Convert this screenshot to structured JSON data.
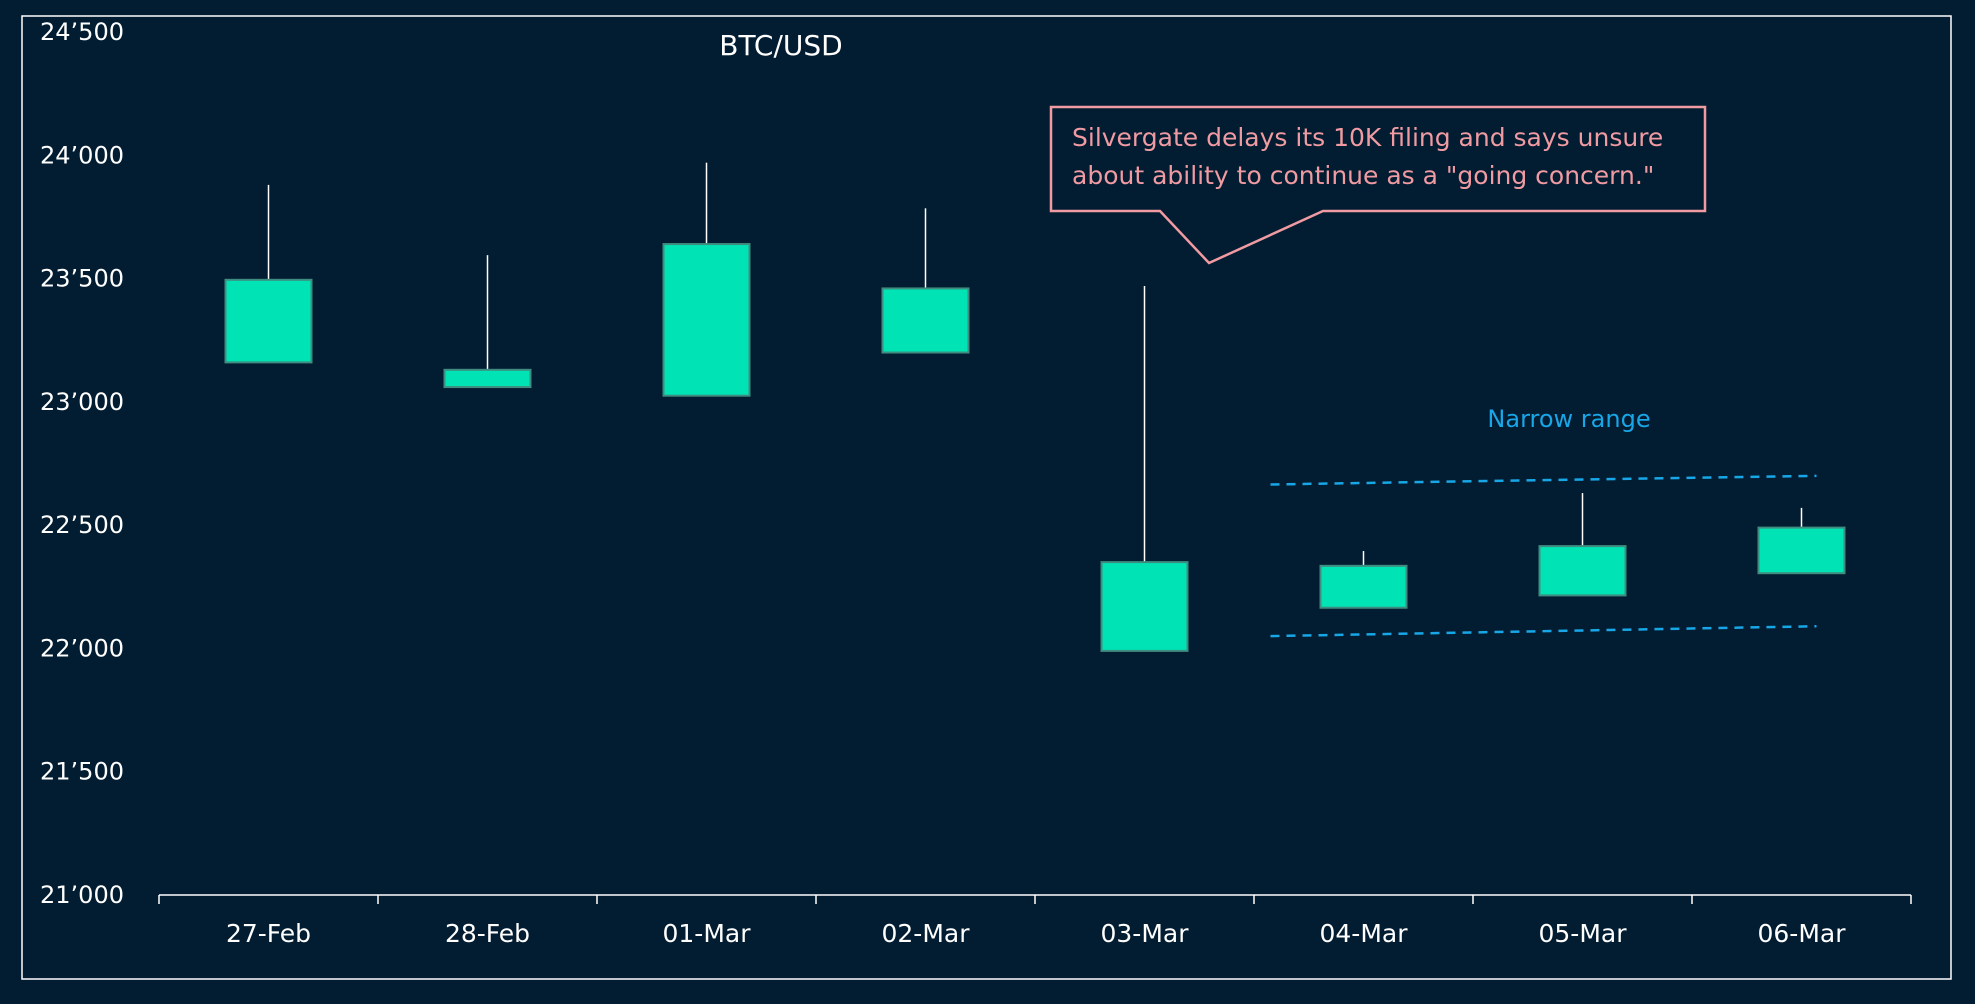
{
  "chart_data": {
    "type": "candlestick",
    "title": "BTC/USD",
    "xlabel": "",
    "ylabel": "",
    "ylim": [
      21000,
      24500
    ],
    "yticks": [
      21000,
      21500,
      22000,
      22500,
      23000,
      23500,
      24000,
      24500
    ],
    "ytick_labels": [
      "21’000",
      "21’500",
      "22’000",
      "22’500",
      "23’000",
      "23’500",
      "24’000",
      "24’500"
    ],
    "categories": [
      "27-Feb",
      "28-Feb",
      "01-Mar",
      "02-Mar",
      "03-Mar",
      "04-Mar",
      "05-Mar",
      "06-Mar"
    ],
    "candles": [
      {
        "date": "27-Feb",
        "low": 23160,
        "box_low": 23160,
        "box_high": 23495,
        "high": 23880
      },
      {
        "date": "28-Feb",
        "low": 23060,
        "box_low": 23060,
        "box_high": 23130,
        "high": 23595
      },
      {
        "date": "01-Mar",
        "low": 23025,
        "box_low": 23025,
        "box_high": 23640,
        "high": 23970
      },
      {
        "date": "02-Mar",
        "low": 23200,
        "box_low": 23200,
        "box_high": 23460,
        "high": 23785
      },
      {
        "date": "03-Mar",
        "low": 21990,
        "box_low": 21990,
        "box_high": 22350,
        "high": 23470
      },
      {
        "date": "04-Mar",
        "low": 22165,
        "box_low": 22165,
        "box_high": 22335,
        "high": 22395
      },
      {
        "date": "05-Mar",
        "low": 22215,
        "box_low": 22215,
        "box_high": 22415,
        "high": 22630
      },
      {
        "date": "06-Mar",
        "low": 22305,
        "box_low": 22305,
        "box_high": 22490,
        "high": 22570
      }
    ],
    "range_lines": {
      "label": "Narrow range",
      "from": "04-Mar",
      "to": "06-Mar",
      "upper": [
        22665,
        22700
      ],
      "lower": [
        22050,
        22090
      ]
    },
    "annotation": {
      "text_lines": [
        "Silvergate delays its 10K filing and says unsure",
        "about ability to continue as a \"going concern.\""
      ],
      "points_to": "03-Mar"
    },
    "colors": {
      "background": "#021c31",
      "candle_fill": "#00e3b4",
      "candle_stroke": "#3f8c80",
      "wick": "#ffffff",
      "text": "#ffffff",
      "annotation": "#f09aa2",
      "range": "#19a6e6"
    },
    "grid": false,
    "legend": "none"
  }
}
